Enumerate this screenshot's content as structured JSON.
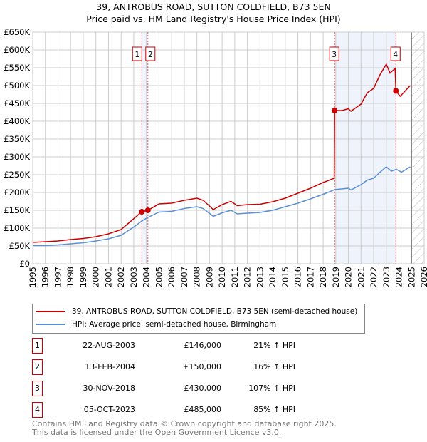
{
  "title": "39, ANTROBUS ROAD, SUTTON COLDFIELD, B73 5EN",
  "subtitle": "Price paid vs. HM Land Registry's House Price Index (HPI)",
  "chart_data": {
    "type": "line",
    "xlim": [
      1995,
      2026
    ],
    "ylim": [
      0,
      650000
    ],
    "yticks": [
      0,
      50000,
      100000,
      150000,
      200000,
      250000,
      300000,
      350000,
      400000,
      450000,
      500000,
      550000,
      600000,
      650000
    ],
    "ytick_labels": [
      "£0",
      "£50K",
      "£100K",
      "£150K",
      "£200K",
      "£250K",
      "£300K",
      "£350K",
      "£400K",
      "£450K",
      "£500K",
      "£550K",
      "£600K",
      "£650K"
    ],
    "xticks": [
      1995,
      1996,
      1997,
      1998,
      1999,
      2000,
      2001,
      2002,
      2003,
      2004,
      2005,
      2006,
      2007,
      2008,
      2009,
      2010,
      2011,
      2012,
      2013,
      2014,
      2015,
      2016,
      2017,
      2018,
      2019,
      2020,
      2021,
      2022,
      2023,
      2024,
      2025,
      2026
    ],
    "grid": true,
    "forecast_from": 2025,
    "shaded_ranges": [
      [
        2003.64,
        2004.12
      ],
      [
        2018.91,
        2023.76
      ]
    ],
    "series": [
      {
        "name": "39, ANTROBUS ROAD, SUTTON COLDFIELD, B73 5EN (semi-detached house)",
        "color": "#cc0000",
        "x": [
          1995,
          1996,
          1997,
          1998,
          1999,
          2000,
          2001,
          2002,
          2003.64,
          2004.12,
          2005,
          2006,
          2007,
          2008,
          2008.5,
          2009.3,
          2010,
          2010.7,
          2011.2,
          2012,
          2013,
          2014,
          2015,
          2016,
          2017,
          2018,
          2018.88,
          2018.91,
          2019.5,
          2020,
          2020.2,
          2021,
          2021.5,
          2022,
          2022.5,
          2023,
          2023.3,
          2023.7,
          2023.76,
          2024.1,
          2024.9
        ],
        "y": [
          60000,
          62000,
          64000,
          68000,
          71000,
          76000,
          84000,
          96000,
          146000,
          150000,
          168000,
          170000,
          178000,
          184000,
          178000,
          152000,
          166000,
          175000,
          163000,
          166000,
          167000,
          174000,
          184000,
          198000,
          212000,
          228000,
          240000,
          430000,
          430000,
          435000,
          428000,
          448000,
          480000,
          492000,
          530000,
          560000,
          535000,
          548000,
          485000,
          470000,
          500000
        ]
      },
      {
        "name": "HPI: Average price, semi-detached house, Birmingham",
        "color": "#5b8fd4",
        "x": [
          1995,
          1996,
          1997,
          1998,
          1999,
          2000,
          2001,
          2002,
          2003,
          2003.64,
          2004.12,
          2005,
          2006,
          2007,
          2008,
          2008.5,
          2009.3,
          2010,
          2010.7,
          2011.2,
          2012,
          2013,
          2014,
          2015,
          2016,
          2017,
          2018,
          2018.91,
          2020,
          2020.2,
          2021,
          2021.5,
          2022,
          2022.5,
          2023,
          2023.4,
          2023.8,
          2024.2,
          2024.9
        ],
        "y": [
          51000,
          51000,
          53000,
          56000,
          59000,
          64000,
          70000,
          80000,
          103000,
          120000,
          130000,
          145000,
          147000,
          155000,
          160000,
          155000,
          133000,
          143000,
          150000,
          140000,
          142000,
          144000,
          150000,
          160000,
          170000,
          182000,
          195000,
          208000,
          212000,
          207000,
          222000,
          235000,
          240000,
          257000,
          272000,
          260000,
          265000,
          257000,
          272000
        ]
      }
    ],
    "sales": [
      {
        "label": "1",
        "x": 2003.64,
        "price": 146000,
        "date": "22-AUG-2003",
        "price_text": "£146,000",
        "hpi": "21% ↑ HPI"
      },
      {
        "label": "2",
        "x": 2004.12,
        "price": 150000,
        "date": "13-FEB-2004",
        "price_text": "£150,000",
        "hpi": "16% ↑ HPI"
      },
      {
        "label": "3",
        "x": 2018.91,
        "price": 430000,
        "date": "30-NOV-2018",
        "price_text": "£430,000",
        "hpi": "107% ↑ HPI"
      },
      {
        "label": "4",
        "x": 2023.76,
        "price": 485000,
        "date": "05-OCT-2023",
        "price_text": "£485,000",
        "hpi": "85% ↑ HPI"
      }
    ]
  },
  "footer": [
    "Contains HM Land Registry data © Crown copyright and database right 2025.",
    "This data is licensed under the Open Government Licence v3.0."
  ]
}
